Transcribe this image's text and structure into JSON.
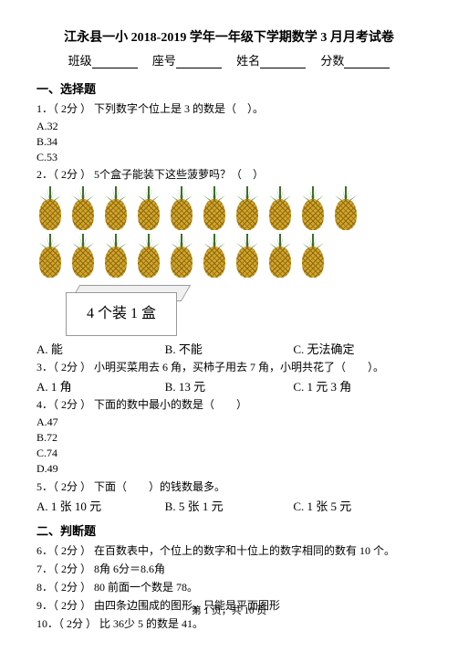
{
  "title": "江永县一小 2018-2019 学年一年级下学期数学 3 月月考试卷",
  "header": {
    "class_label": "班级",
    "seat_label": "座号",
    "name_label": "姓名",
    "score_label": "分数"
  },
  "section1": {
    "header": "一、选择题",
    "q1": {
      "text": "1．（ 2分 ） 下列数字个位上是 3 的数是（　）。",
      "opts": [
        "A.32",
        "B.34",
        "C.53"
      ]
    },
    "q2": {
      "text": "2．（ 2分 ） 5个盒子能装下这些菠萝吗？（　）",
      "box_label": "4 个装 1 盒",
      "opts": [
        "A. 能",
        "B. 不能",
        "C. 无法确定"
      ],
      "pineapple_count_row1": 10,
      "pineapple_count_row2": 9
    },
    "q3": {
      "text": "3．（ 2分 ） 小明买菜用去 6 角，买柿子用去 7 角，小明共花了（　　）。",
      "opts": [
        "A. 1 角",
        "B. 13 元",
        "C. 1 元 3 角"
      ]
    },
    "q4": {
      "text": "4．（ 2分 ） 下面的数中最小的数是（　　）",
      "opts": [
        "A.47",
        "B.72",
        "C.74",
        "D.49"
      ]
    },
    "q5": {
      "text": "5．（ 2分 ） 下面（　　）的钱数最多。",
      "opts": [
        "A. 1 张 10 元",
        "B. 5 张 1 元",
        "C. 1 张 5 元"
      ]
    }
  },
  "section2": {
    "header": "二、判断题",
    "q6": "6．（ 2分 ） 在百数表中，个位上的数字和十位上的数字相同的数有 10 个。",
    "q7": "7．（ 2分 ） 8角 6分＝8.6角",
    "q8": "8．（ 2分 ） 80 前面一个数是 78。",
    "q9": "9．（ 2分 ） 由四条边围成的图形，只能是平面图形",
    "q10": "10．（ 2分 ） 比 36少 5 的数是 41。"
  },
  "footer": "第 1 页，共 10 页",
  "leaf_color": "#3a7025",
  "leaf_color_light": "#5a9035"
}
